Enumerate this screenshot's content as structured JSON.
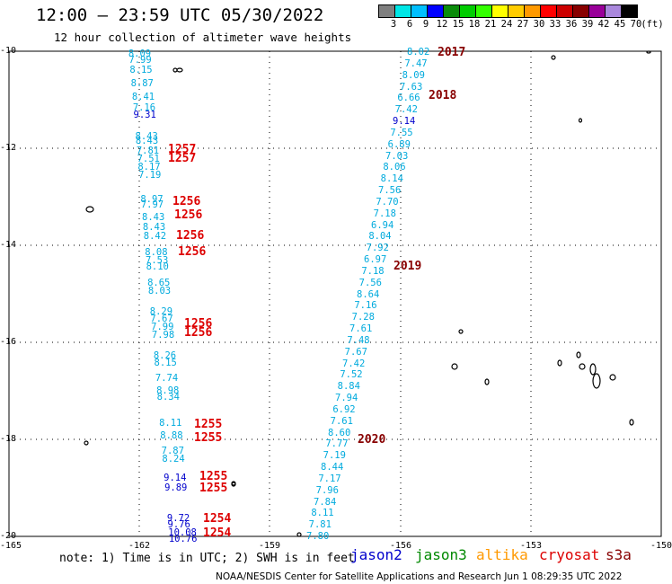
{
  "header": {
    "title": "12:00 – 23:59 UTC 05/30/2022",
    "subtitle": "12 hour collection of altimeter wave heights"
  },
  "colorbar": {
    "colors": [
      "#7f7f7f",
      "#00e6e6",
      "#00bfff",
      "#0000ff",
      "#0a8c0a",
      "#00cc00",
      "#33ff00",
      "#ffff00",
      "#ffcc00",
      "#ff9900",
      "#ff0000",
      "#cc0000",
      "#880000",
      "#990099",
      "#aa88dd",
      "#000000"
    ],
    "labels": [
      "3",
      "6",
      "9",
      "12",
      "15",
      "18",
      "21",
      "24",
      "27",
      "30",
      "33",
      "36",
      "39",
      "42",
      "45",
      "70",
      "(ft)"
    ]
  },
  "axes": {
    "lat_labels": [
      "-10",
      "-12",
      "-14",
      "-16",
      "-18",
      "-20"
    ],
    "lon_labels": [
      "-165",
      "-162",
      "-159",
      "-156",
      "-153",
      "-150"
    ]
  },
  "tracks": {
    "west": [
      {
        "v": "8.09",
        "c": "#00aadd"
      },
      {
        "v": "7.99",
        "c": "#00aadd"
      },
      {
        "v": "8.15",
        "c": "#00aadd"
      },
      {
        "v": "8.87",
        "c": "#00aadd"
      },
      {
        "v": "8.41",
        "c": "#00aadd"
      },
      {
        "v": "7.16",
        "c": "#00aadd"
      },
      {
        "v": "9.31",
        "c": "#0000cc"
      },
      {
        "v": "8.43",
        "c": "#00aadd"
      },
      {
        "v": "8.43",
        "c": "#00aadd"
      },
      {
        "v": "7.81",
        "c": "#00aadd"
      },
      {
        "v": "7.51",
        "c": "#00aadd"
      },
      {
        "v": "8.17",
        "c": "#00aadd"
      },
      {
        "v": "7.19",
        "c": "#00aadd"
      },
      {
        "v": "8.97",
        "c": "#00aadd"
      },
      {
        "v": "7.97",
        "c": "#00aadd"
      },
      {
        "v": "8.43",
        "c": "#00aadd"
      },
      {
        "v": "8.43",
        "c": "#00aadd"
      },
      {
        "v": "8.42",
        "c": "#00aadd"
      },
      {
        "v": "8.08",
        "c": "#00aadd"
      },
      {
        "v": "7.53",
        "c": "#00aadd"
      },
      {
        "v": "8.10",
        "c": "#00aadd"
      },
      {
        "v": "8.65",
        "c": "#00aadd"
      },
      {
        "v": "8.03",
        "c": "#00aadd"
      },
      {
        "v": "8.29",
        "c": "#00aadd"
      },
      {
        "v": "7.67",
        "c": "#00aadd"
      },
      {
        "v": "7.99",
        "c": "#00aadd"
      },
      {
        "v": "7.98",
        "c": "#00aadd"
      },
      {
        "v": "8.26",
        "c": "#00aadd"
      },
      {
        "v": "8.15",
        "c": "#00aadd"
      },
      {
        "v": "7.74",
        "c": "#00aadd"
      },
      {
        "v": "8.98",
        "c": "#00aadd"
      },
      {
        "v": "8.34",
        "c": "#00aadd"
      },
      {
        "v": "8.11",
        "c": "#00aadd"
      },
      {
        "v": "8.88",
        "c": "#00aadd"
      },
      {
        "v": "7.87",
        "c": "#00aadd"
      },
      {
        "v": "8.24",
        "c": "#00aadd"
      },
      {
        "v": "9.14",
        "c": "#0000cc"
      },
      {
        "v": "9.89",
        "c": "#0000cc"
      },
      {
        "v": "9.72",
        "c": "#0000cc"
      },
      {
        "v": "9.76",
        "c": "#0000cc"
      },
      {
        "v": "10.08",
        "c": "#0000cc"
      },
      {
        "v": "10.76",
        "c": "#0000cc"
      }
    ],
    "diagonal": [
      {
        "v": "8.02",
        "c": "#00aadd"
      },
      {
        "v": "7.47",
        "c": "#00aadd"
      },
      {
        "v": "8.09",
        "c": "#00aadd"
      },
      {
        "v": "7.63",
        "c": "#00aadd"
      },
      {
        "v": "6.66",
        "c": "#00aadd"
      },
      {
        "v": "7.42",
        "c": "#00aadd"
      },
      {
        "v": "9.14",
        "c": "#0000cc"
      },
      {
        "v": "7.55",
        "c": "#00aadd"
      },
      {
        "v": "6.89",
        "c": "#00aadd"
      },
      {
        "v": "7.03",
        "c": "#00aadd"
      },
      {
        "v": "8.06",
        "c": "#00aadd"
      },
      {
        "v": "8.14",
        "c": "#00aadd"
      },
      {
        "v": "7.56",
        "c": "#00aadd"
      },
      {
        "v": "7.70",
        "c": "#00aadd"
      },
      {
        "v": "7.18",
        "c": "#00aadd"
      },
      {
        "v": "6.94",
        "c": "#00aadd"
      },
      {
        "v": "8.04",
        "c": "#00aadd"
      },
      {
        "v": "7.92",
        "c": "#00aadd"
      },
      {
        "v": "6.97",
        "c": "#00aadd"
      },
      {
        "v": "7.18",
        "c": "#00aadd"
      },
      {
        "v": "7.56",
        "c": "#00aadd"
      },
      {
        "v": "8.64",
        "c": "#00aadd"
      },
      {
        "v": "7.16",
        "c": "#00aadd"
      },
      {
        "v": "7.28",
        "c": "#00aadd"
      },
      {
        "v": "7.61",
        "c": "#00aadd"
      },
      {
        "v": "7.48",
        "c": "#00aadd"
      },
      {
        "v": "7.67",
        "c": "#00aadd"
      },
      {
        "v": "7.42",
        "c": "#00aadd"
      },
      {
        "v": "7.52",
        "c": "#00aadd"
      },
      {
        "v": "8.84",
        "c": "#00aadd"
      },
      {
        "v": "7.94",
        "c": "#00aadd"
      },
      {
        "v": "6.92",
        "c": "#00aadd"
      },
      {
        "v": "7.61",
        "c": "#00aadd"
      },
      {
        "v": "8.60",
        "c": "#00aadd"
      },
      {
        "v": "7.77",
        "c": "#00aadd"
      },
      {
        "v": "7.19",
        "c": "#00aadd"
      },
      {
        "v": "8.44",
        "c": "#00aadd"
      },
      {
        "v": "7.17",
        "c": "#00aadd"
      },
      {
        "v": "7.96",
        "c": "#00aadd"
      },
      {
        "v": "7.84",
        "c": "#00aadd"
      },
      {
        "v": "8.11",
        "c": "#00aadd"
      },
      {
        "v": "7.81",
        "c": "#00aadd"
      },
      {
        "v": "7.80",
        "c": "#00aadd"
      }
    ]
  },
  "revs_red": [
    "1257",
    "1257",
    "1256",
    "1256",
    "1256",
    "1256",
    "1256",
    "1256",
    "1255",
    "1255",
    "1255",
    "1255",
    "1254",
    "1254"
  ],
  "revs_dark": [
    "2017",
    "2018",
    "2019",
    "2020"
  ],
  "footer": {
    "note": "note: 1) Time is in UTC; 2) SWH is in feet",
    "legend": [
      {
        "label": "jason2",
        "color": "#0000cc"
      },
      {
        "label": "jason3",
        "color": "#008800"
      },
      {
        "label": "altika",
        "color": "#ff9900"
      },
      {
        "label": "cryosat",
        "color": "#dd0000"
      },
      {
        "label": "s3a",
        "color": "#880000"
      }
    ],
    "credit": "NOAA/NESDIS Center for Satellite Applications and Research   Jun  1 08:29:35 UTC 2022"
  }
}
